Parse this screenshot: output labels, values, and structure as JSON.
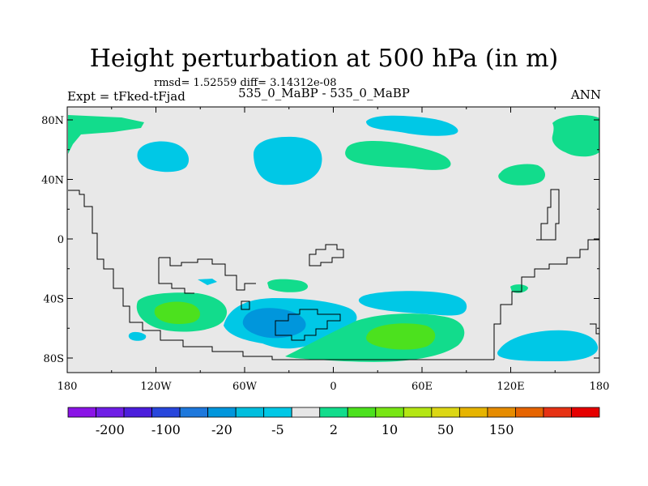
{
  "title": "Height perturbation at 500 hPa (in m)",
  "stats_line": "rmsd= 1.52559 diff= 3.14312e-08",
  "experiment_line": "Expt = tFked-tFjad",
  "subtitle": "535_0_MaBP - 535_0_MaBP",
  "season": "ANN",
  "map": {
    "background_color": "#e8e8e8",
    "lat_ticks": [
      {
        "value": 80,
        "label": "80N"
      },
      {
        "value": 40,
        "label": "40N"
      },
      {
        "value": 0,
        "label": "0"
      },
      {
        "value": -40,
        "label": "40S"
      },
      {
        "value": -80,
        "label": "80S"
      }
    ],
    "lon_ticks": [
      {
        "value": -180,
        "label": "180"
      },
      {
        "value": -120,
        "label": "120W"
      },
      {
        "value": -60,
        "label": "60W"
      },
      {
        "value": 0,
        "label": "0"
      },
      {
        "value": 60,
        "label": "60E"
      },
      {
        "value": 120,
        "label": "120E"
      },
      {
        "value": 180,
        "label": "180"
      }
    ]
  },
  "colorbar": {
    "colors": [
      "#8a14e6",
      "#6f1ee6",
      "#4b1edc",
      "#2846dc",
      "#1e78dc",
      "#0096dc",
      "#00bede",
      "#00c8e6",
      "#e6e6e6",
      "#12dc8c",
      "#4ce11e",
      "#78e614",
      "#b4e614",
      "#dcd714",
      "#e6b400",
      "#e68c00",
      "#e66400",
      "#e63214",
      "#e60000"
    ],
    "labels": [
      "-200",
      "-100",
      "-20",
      "-5",
      "2",
      "10",
      "50",
      "150"
    ]
  }
}
